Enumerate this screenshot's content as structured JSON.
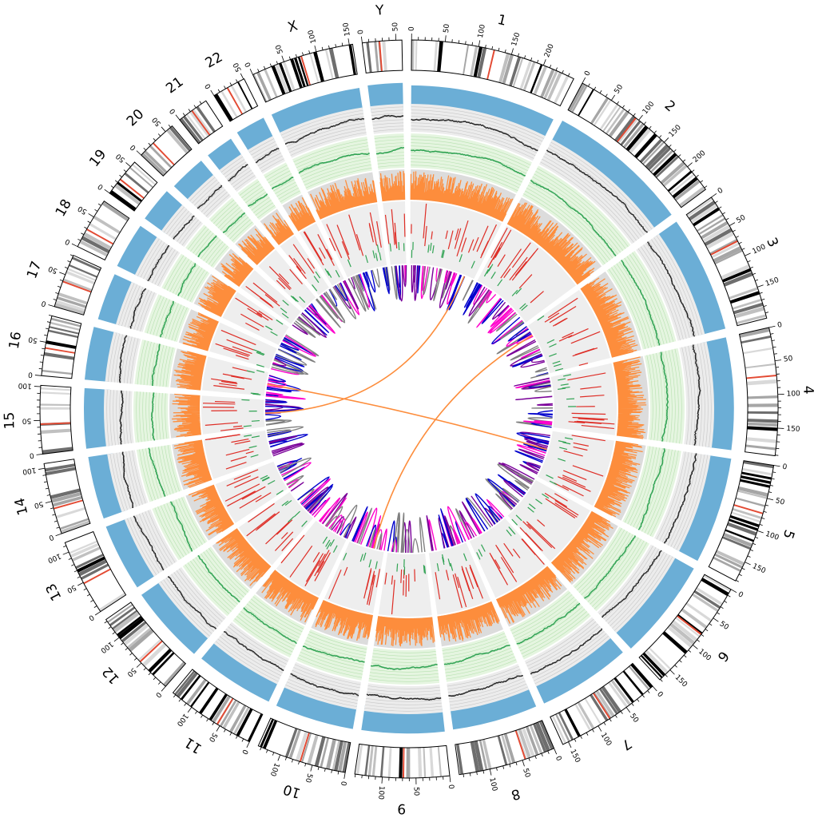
{
  "chart_data": {
    "type": "circos",
    "unit": "Mb",
    "chromosomes": [
      {
        "name": "1",
        "length": 249,
        "ticks": [
          "0",
          "50",
          "100",
          "150",
          "200"
        ]
      },
      {
        "name": "2",
        "length": 243,
        "ticks": [
          "0",
          "50",
          "100",
          "150",
          "200"
        ]
      },
      {
        "name": "3",
        "length": 198,
        "ticks": [
          "0",
          "50",
          "100",
          "150"
        ]
      },
      {
        "name": "4",
        "length": 191,
        "ticks": [
          "0",
          "50",
          "100",
          "150"
        ]
      },
      {
        "name": "5",
        "length": 181,
        "ticks": [
          "0",
          "50",
          "100",
          "150"
        ]
      },
      {
        "name": "6",
        "length": 171,
        "ticks": [
          "0",
          "50",
          "100",
          "150"
        ]
      },
      {
        "name": "7",
        "length": 159,
        "ticks": [
          "0",
          "50",
          "100",
          "150"
        ]
      },
      {
        "name": "8",
        "length": 146,
        "ticks": [
          "0",
          "50",
          "100"
        ]
      },
      {
        "name": "9",
        "length": 141,
        "ticks": [
          "0",
          "50",
          "100"
        ]
      },
      {
        "name": "10",
        "length": 135,
        "ticks": [
          "0",
          "50",
          "100"
        ]
      },
      {
        "name": "11",
        "length": 135,
        "ticks": [
          "0",
          "50",
          "100"
        ]
      },
      {
        "name": "12",
        "length": 133,
        "ticks": [
          "0",
          "50",
          "100"
        ]
      },
      {
        "name": "13",
        "length": 115,
        "ticks": [
          "0",
          "50",
          "100"
        ]
      },
      {
        "name": "14",
        "length": 107,
        "ticks": [
          "0",
          "50",
          "100"
        ]
      },
      {
        "name": "15",
        "length": 102,
        "ticks": [
          "0",
          "50",
          "100"
        ]
      },
      {
        "name": "16",
        "length": 90,
        "ticks": [
          "0",
          "50"
        ]
      },
      {
        "name": "17",
        "length": 81,
        "ticks": [
          "0",
          "50"
        ]
      },
      {
        "name": "18",
        "length": 78,
        "ticks": [
          "0",
          "50"
        ]
      },
      {
        "name": "19",
        "length": 59,
        "ticks": [
          "0",
          "50"
        ]
      },
      {
        "name": "20",
        "length": 63,
        "ticks": [
          "0",
          "50"
        ]
      },
      {
        "name": "21",
        "length": 48,
        "ticks": [
          "0"
        ]
      },
      {
        "name": "22",
        "length": 51,
        "ticks": [
          "0",
          "50"
        ]
      },
      {
        "name": "X",
        "length": 155,
        "ticks": [
          "0",
          "50",
          "100",
          "150"
        ]
      },
      {
        "name": "Y",
        "length": 59,
        "ticks": [
          "0",
          "50"
        ]
      }
    ],
    "tracks": [
      "ideogram",
      "coverage-area",
      "scatter-gray",
      "scatter-green",
      "histogram",
      "radial-lines-red",
      "radial-lines-green",
      "links"
    ],
    "colors": {
      "coverage": "#6baed6",
      "scatter_gray_bg": "#ececec",
      "scatter_gray_point": "#222222",
      "scatter_green_bg": "#e5f5e0",
      "scatter_green_point": "#31a354",
      "histogram_bg": "#dcdcdc",
      "histogram": "#fd8d3c",
      "red_track_bg": "#eeeeee",
      "red_lines": "#de2d26",
      "green_lines": "#31a354",
      "centromere": "#e34a33",
      "link_colors": [
        "#0000cc",
        "#ff00cc",
        "#808080",
        "#7a0099"
      ],
      "interchromosomal_link": "#fd8d3c"
    }
  }
}
